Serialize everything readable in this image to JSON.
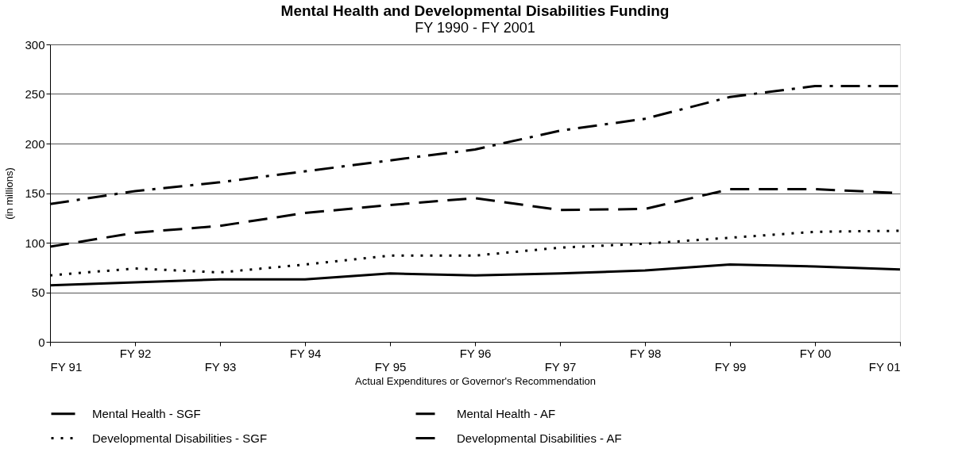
{
  "chart_data": {
    "type": "line",
    "title": "Mental Health and Developmental Disabilities Funding",
    "subtitle": "FY 1990 - FY 2001",
    "xlabel": "Actual Expenditures or Governor's Recommendation",
    "ylabel": "(in millions)",
    "categories": [
      "FY 91",
      "FY 92",
      "FY 93",
      "FY 94",
      "FY 95",
      "FY 96",
      "FY 97",
      "FY 98",
      "FY 99",
      "FY 00",
      "FY 01"
    ],
    "series": [
      {
        "name": "Mental Health - SGF",
        "color": "#000000",
        "line_style": "solid",
        "values": [
          57,
          60,
          63,
          63,
          69,
          67,
          69,
          72,
          78,
          76,
          73
        ]
      },
      {
        "name": "Developmental Disabilities - SGF",
        "color": "#000000",
        "line_style": "dotted",
        "values": [
          67,
          74,
          70,
          78,
          87,
          87,
          95,
          99,
          105,
          111,
          112
        ]
      },
      {
        "name": "Mental Health - AF",
        "color": "#000000",
        "line_style": "dashed",
        "values": [
          96,
          110,
          117,
          130,
          138,
          145,
          133,
          134,
          154,
          154,
          150
        ]
      },
      {
        "name": "Developmental Disabilities - AF",
        "color": "#000000",
        "line_style": "dashdot",
        "values": [
          139,
          152,
          161,
          172,
          183,
          194,
          213,
          225,
          247,
          258,
          258
        ]
      }
    ],
    "ylim": [
      0,
      300
    ],
    "yticks": [
      0,
      50,
      100,
      150,
      200,
      250,
      300
    ],
    "grid": "y",
    "legend": "bottom"
  }
}
